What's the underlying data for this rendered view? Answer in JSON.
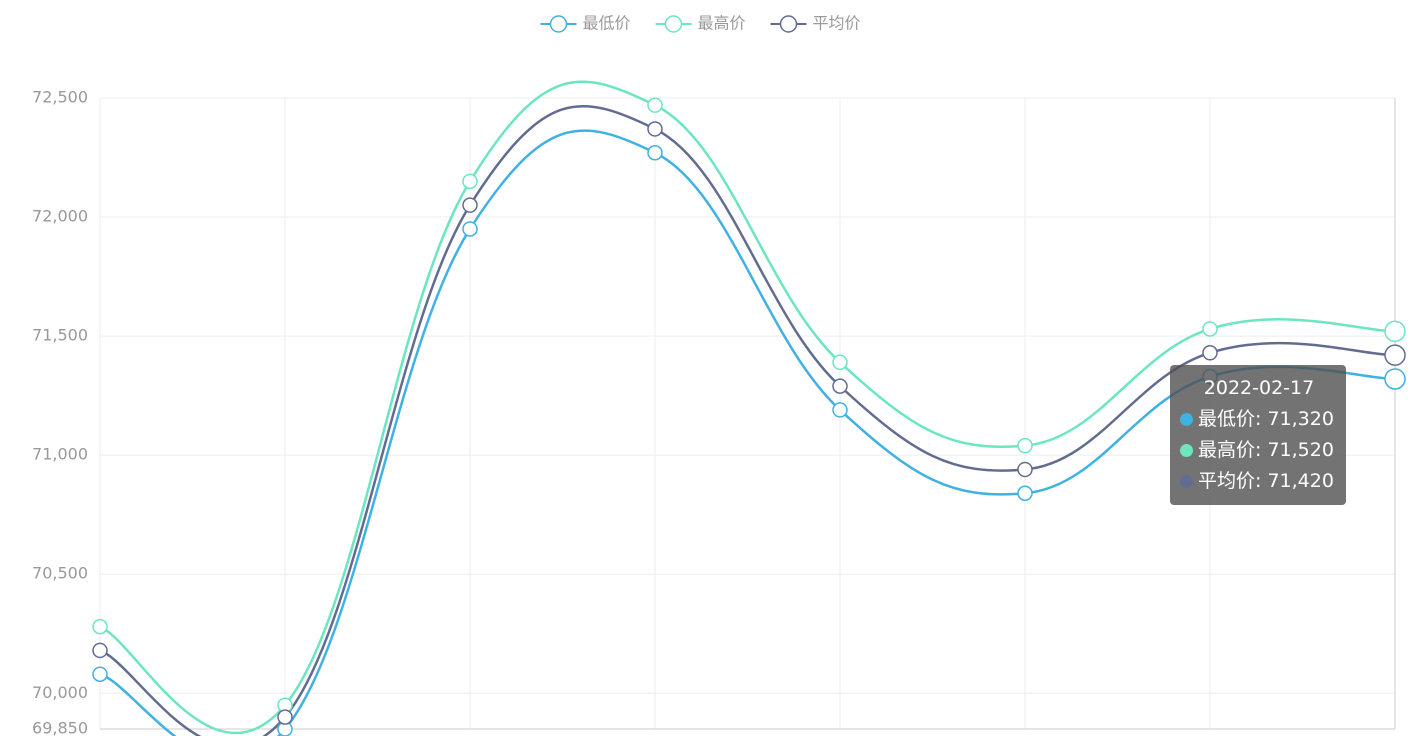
{
  "chart_data": {
    "type": "line",
    "smooth": true,
    "categories": [
      null,
      null,
      null,
      null,
      null,
      null,
      null,
      "2022-02-17"
    ],
    "series": [
      {
        "name": "最低价",
        "color": "#3fb1e3",
        "values": [
          70080,
          69850,
          71950,
          72270,
          71190,
          70840,
          71330,
          71320
        ],
        "value_labels": [
          null,
          null,
          null,
          null,
          null,
          null,
          null,
          "71,320"
        ]
      },
      {
        "name": "最高价",
        "color": "#6be6c1",
        "values": [
          70280,
          69950,
          72150,
          72470,
          71390,
          71040,
          71530,
          71520
        ],
        "value_labels": [
          null,
          null,
          null,
          null,
          null,
          null,
          null,
          "71,520"
        ]
      },
      {
        "name": "平均价",
        "color": "#626c91",
        "values": [
          70180,
          69900,
          72050,
          72370,
          71290,
          70940,
          71430,
          71420
        ],
        "value_labels": [
          null,
          null,
          null,
          null,
          null,
          null,
          null,
          "71,420"
        ]
      }
    ],
    "ylim": [
      69850,
      72500
    ],
    "yticks": [
      {
        "value": 69850,
        "label": "69,850"
      },
      {
        "value": 70000,
        "label": "70,000"
      },
      {
        "value": 70500,
        "label": "70,500"
      },
      {
        "value": 71000,
        "label": "71,000"
      },
      {
        "value": 71500,
        "label": "71,500"
      },
      {
        "value": 72000,
        "label": "72,000"
      },
      {
        "value": 72500,
        "label": "72,500"
      }
    ],
    "grid": true,
    "legend": "top",
    "tooltip": {
      "index": 7,
      "separator": ": "
    }
  }
}
